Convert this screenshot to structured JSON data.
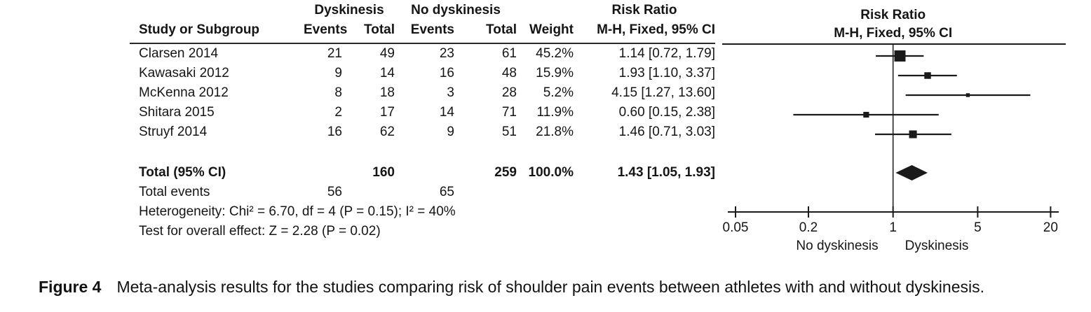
{
  "table": {
    "group_headers": {
      "dyskinesis": "Dyskinesis",
      "no_dyskinesis": "No dyskinesis",
      "risk_ratio": "Risk Ratio"
    },
    "subheaders": {
      "study": "Study or Subgroup",
      "events": "Events",
      "total": "Total",
      "weight": "Weight",
      "mh": "M-H, Fixed, 95% CI"
    },
    "rows": [
      {
        "study": "Clarsen 2014",
        "e1": "21",
        "t1": "49",
        "e2": "23",
        "t2": "61",
        "weight": "45.2%",
        "rr": "1.14 [0.72, 1.79]"
      },
      {
        "study": "Kawasaki 2012",
        "e1": "9",
        "t1": "14",
        "e2": "16",
        "t2": "48",
        "weight": "15.9%",
        "rr": "1.93 [1.10, 3.37]"
      },
      {
        "study": "McKenna 2012",
        "e1": "8",
        "t1": "18",
        "e2": "3",
        "t2": "28",
        "weight": "5.2%",
        "rr": "4.15 [1.27, 13.60]"
      },
      {
        "study": "Shitara 2015",
        "e1": "2",
        "t1": "17",
        "e2": "14",
        "t2": "71",
        "weight": "11.9%",
        "rr": "0.60 [0.15, 2.38]"
      },
      {
        "study": "Struyf 2014",
        "e1": "16",
        "t1": "62",
        "e2": "9",
        "t2": "51",
        "weight": "21.8%",
        "rr": "1.46 [0.71, 3.03]"
      }
    ],
    "total_row": {
      "label": "Total (95% CI)",
      "t1": "160",
      "t2": "259",
      "weight": "100.0%",
      "rr": "1.43 [1.05, 1.93]"
    },
    "total_events": {
      "label": "Total events",
      "e1": "56",
      "e2": "65"
    },
    "heterogeneity_text": "Heterogeneity: Chi² = 6.70, df = 4 (P = 0.15); I² = 40%",
    "overall_effect_text": "Test for overall effect: Z = 2.28 (P = 0.02)"
  },
  "plot": {
    "header1": "Risk Ratio",
    "header2": "M-H, Fixed, 95% CI",
    "axis_ticks": [
      "0.05",
      "0.2",
      "1",
      "5",
      "20"
    ],
    "axis_left_label": "No dyskinesis",
    "axis_right_label": "Dyskinesis",
    "ink_color": "#1a1a1a"
  },
  "chart_data": {
    "type": "forest",
    "scale": "log",
    "xlim": [
      0.05,
      20
    ],
    "effect_measure": "Risk Ratio, M-H, Fixed, 95% CI",
    "studies": [
      {
        "name": "Clarsen 2014",
        "events_dyskinesis": 21,
        "total_dyskinesis": 49,
        "events_no_dyskinesis": 23,
        "total_no_dyskinesis": 61,
        "weight_pct": 45.2,
        "rr": 1.14,
        "ci_low": 0.72,
        "ci_high": 1.79
      },
      {
        "name": "Kawasaki 2012",
        "events_dyskinesis": 9,
        "total_dyskinesis": 14,
        "events_no_dyskinesis": 16,
        "total_no_dyskinesis": 48,
        "weight_pct": 15.9,
        "rr": 1.93,
        "ci_low": 1.1,
        "ci_high": 3.37
      },
      {
        "name": "McKenna 2012",
        "events_dyskinesis": 8,
        "total_dyskinesis": 18,
        "events_no_dyskinesis": 3,
        "total_no_dyskinesis": 28,
        "weight_pct": 5.2,
        "rr": 4.15,
        "ci_low": 1.27,
        "ci_high": 13.6
      },
      {
        "name": "Shitara 2015",
        "events_dyskinesis": 2,
        "total_dyskinesis": 17,
        "events_no_dyskinesis": 14,
        "total_no_dyskinesis": 71,
        "weight_pct": 11.9,
        "rr": 0.6,
        "ci_low": 0.15,
        "ci_high": 2.38
      },
      {
        "name": "Struyf 2014",
        "events_dyskinesis": 16,
        "total_dyskinesis": 62,
        "events_no_dyskinesis": 9,
        "total_no_dyskinesis": 51,
        "weight_pct": 21.8,
        "rr": 1.46,
        "ci_low": 0.71,
        "ci_high": 3.03
      }
    ],
    "total": {
      "rr": 1.43,
      "ci_low": 1.05,
      "ci_high": 1.93,
      "total_dyskinesis": 160,
      "total_no_dyskinesis": 259,
      "weight_pct": 100.0,
      "total_events_dyskinesis": 56,
      "total_events_no_dyskinesis": 65
    },
    "heterogeneity": {
      "chi2": 6.7,
      "df": 4,
      "p": 0.15,
      "i2_pct": 40
    },
    "overall_effect": {
      "z": 2.28,
      "p": 0.02
    },
    "axis_ticks": [
      0.05,
      0.2,
      1,
      5,
      20
    ]
  },
  "caption": {
    "label": "Figure 4",
    "text": "Meta-analysis results for the studies comparing risk of shoulder pain events between athletes with and without dyskinesis."
  }
}
